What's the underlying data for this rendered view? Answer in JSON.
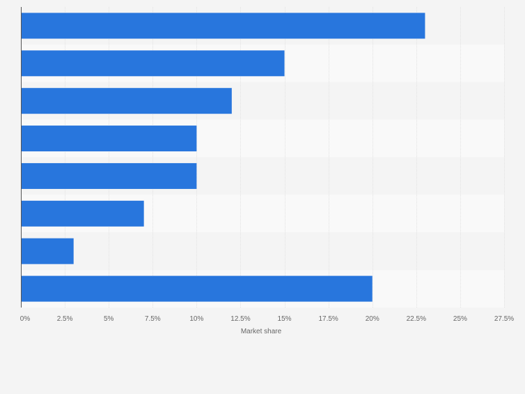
{
  "chart_data": {
    "type": "bar",
    "orientation": "horizontal",
    "categories": [
      "",
      "",
      "",
      "",
      "",
      "",
      "",
      ""
    ],
    "values": [
      23,
      15,
      12,
      10,
      10,
      7,
      3,
      20
    ],
    "title": "",
    "xlabel": "Market share",
    "ylabel": "",
    "xlim": [
      0,
      27.5
    ],
    "x_ticks": [
      0,
      2.5,
      5,
      7.5,
      10,
      12.5,
      15,
      17.5,
      20,
      22.5,
      25,
      27.5
    ],
    "x_tick_labels": [
      "0%",
      "2.5%",
      "5%",
      "7.5%",
      "10%",
      "12.5%",
      "15%",
      "17.5%",
      "20%",
      "22.5%",
      "25%",
      "27.5%"
    ],
    "grid": true,
    "legend": "none"
  },
  "colors": {
    "bar": "#2876dd",
    "background": "#f4f4f4",
    "band_light": "#f9f9f9",
    "band_dark": "#f4f4f4",
    "grid": "#e2e2e2",
    "axis": "#555555",
    "tick_text": "#666666"
  }
}
